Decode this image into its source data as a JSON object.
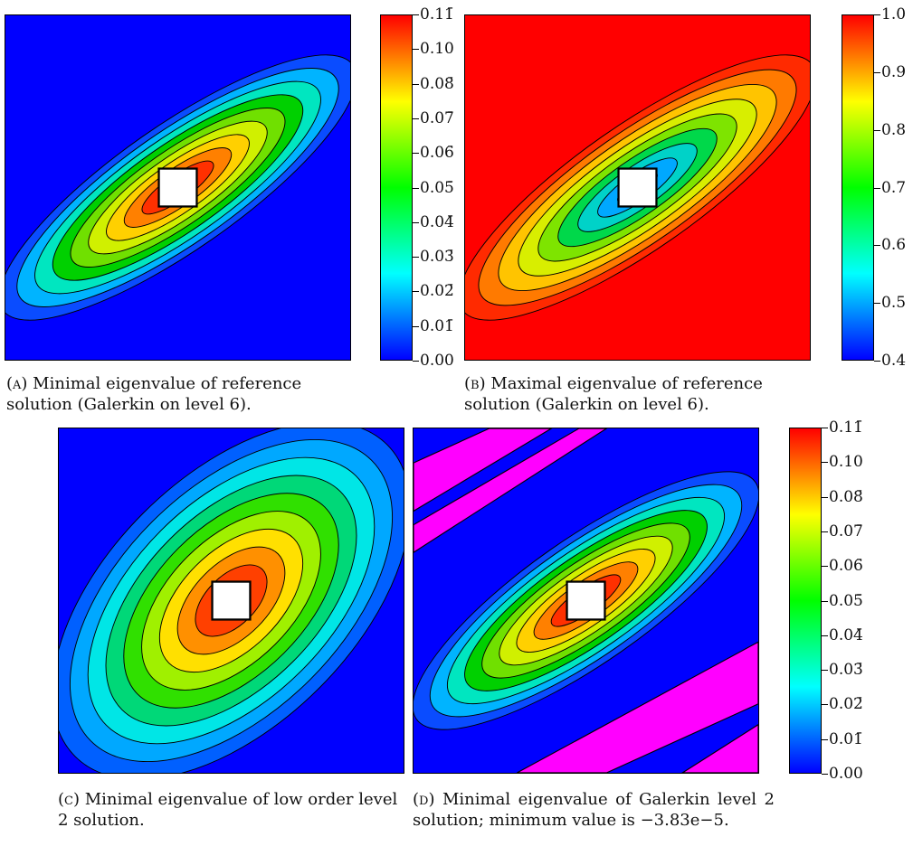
{
  "chart_data": [
    {
      "id": "a",
      "type": "heatmap",
      "subfigure_label": "(a)",
      "caption": "Minimal eigenvalue of reference solution (Galerkin on level 6).",
      "colorbar": {
        "ticks": [
          "0.00",
          "0.01̄",
          "0.02̄",
          "0.03̄",
          "0.04̄",
          "0.05̄",
          "0.06̄",
          "0.07̄",
          "0.08̄",
          "0.10",
          "0.11̄"
        ],
        "range": [
          0.0,
          0.111
        ]
      },
      "field": {
        "description_values": "elongated diagonal ellipse, max at center near square hole",
        "peak": 0.111,
        "background": 0.0
      },
      "colormap": "jet"
    },
    {
      "id": "b",
      "type": "heatmap",
      "subfigure_label": "(b)",
      "caption": "Maximal eigenvalue of reference solution (Galerkin on level 6).",
      "colorbar": {
        "ticks": [
          "0.4",
          "0.5",
          "0.6",
          "0.7",
          "0.8",
          "0.9",
          "1.0"
        ],
        "range": [
          0.4,
          1.0
        ]
      },
      "field": {
        "peak": 1.0,
        "minimum_near_center": 0.45
      },
      "colormap": "jet"
    },
    {
      "id": "c",
      "type": "heatmap",
      "subfigure_label": "(c)",
      "caption": "Minimal eigenvalue of low order level 2 solution.",
      "colormap": "jet"
    },
    {
      "id": "d",
      "type": "heatmap",
      "subfigure_label": "(d)",
      "caption": "Minimal eigenvalue of Galerkin level 2 solution; minimum value is −3.83e−5.",
      "colorbar": {
        "ticks": [
          "0.00",
          "0.01̄",
          "0.02̄",
          "0.03̄",
          "0.04̄",
          "0.05̄",
          "0.06̄",
          "0.07̄",
          "0.08̄",
          "0.10",
          "0.11̄"
        ],
        "range": [
          0.0,
          0.111
        ]
      },
      "negative_region_color": "#ff00ff",
      "colormap": "jet"
    }
  ],
  "colors": {
    "jet_low": "#0000ff",
    "jet_cyan": "#00ffff",
    "jet_green": "#00ff00",
    "jet_yellow": "#ffff00",
    "jet_high": "#ff0000",
    "negative": "#ff00ff",
    "hole": "#ffffff"
  }
}
